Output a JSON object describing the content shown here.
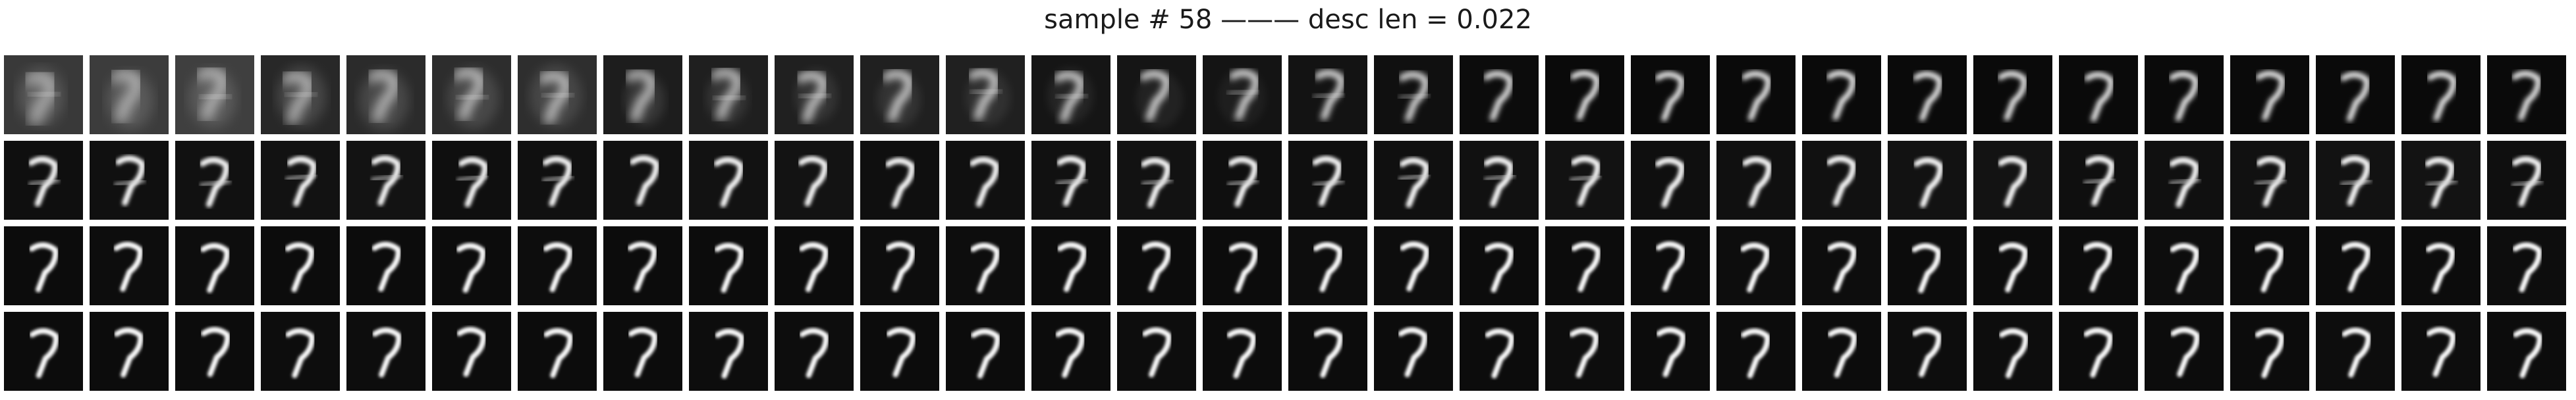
{
  "figure": {
    "title": "sample # 58 ——— desc len = 0.022"
  },
  "grid": {
    "rows": 4,
    "cols": 30,
    "tile_content": "grayscale reconstruction of handwritten digit 7, progressively sharper by row"
  }
}
